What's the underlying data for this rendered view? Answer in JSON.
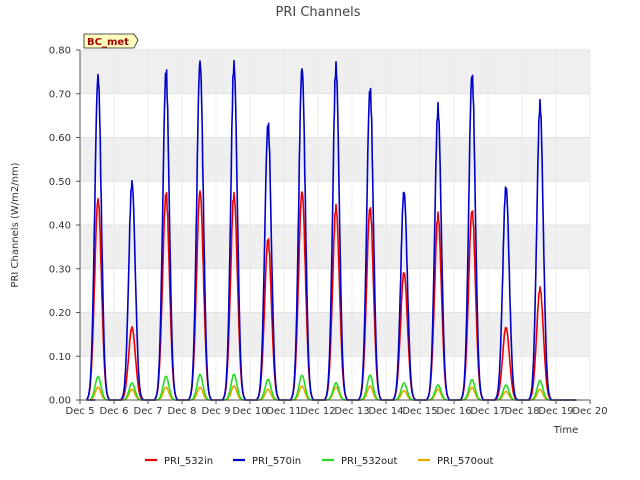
{
  "chart_data": {
    "type": "line",
    "title": "PRI Channels",
    "xlabel": "Time",
    "ylabel": "PRI Channels (W/m2/nm)",
    "badge": "BC_met",
    "xlim": [
      5,
      20
    ],
    "ylim": [
      0,
      0.8
    ],
    "x_tick_values": [
      5,
      6,
      7,
      8,
      9,
      10,
      11,
      12,
      13,
      14,
      15,
      16,
      17,
      18,
      19,
      20
    ],
    "x_tick_labels": [
      "Dec 5",
      "Dec 6",
      "Dec 7",
      "Dec 8",
      "Dec 9",
      "Dec 10",
      "Dec 11",
      "Dec 12",
      "Dec 13",
      "Dec 14",
      "Dec 15",
      "Dec 16",
      "Dec 17",
      "Dec 18",
      "Dec 19",
      "Dec 20"
    ],
    "y_tick_values": [
      0,
      0.1,
      0.2,
      0.3,
      0.4,
      0.5,
      0.6,
      0.7,
      0.8
    ],
    "y_tick_labels": [
      "0.00",
      "0.10",
      "0.20",
      "0.30",
      "0.40",
      "0.50",
      "0.60",
      "0.70",
      "0.80"
    ],
    "grid": true,
    "legend_position": "bottom-center",
    "daily_peaks": {
      "days": [
        6,
        7,
        8,
        9,
        10,
        11,
        12,
        13,
        14,
        15,
        16,
        17,
        18,
        19
      ],
      "PRI_532in": [
        0.47,
        0.17,
        0.48,
        0.49,
        0.48,
        0.375,
        0.49,
        0.45,
        0.45,
        0.3,
        0.43,
        0.445,
        0.17,
        0.26
      ],
      "PRI_570in": [
        0.76,
        0.51,
        0.765,
        0.795,
        0.785,
        0.645,
        0.78,
        0.778,
        0.73,
        0.49,
        0.68,
        0.765,
        0.5,
        0.69
      ],
      "PRI_532out": [
        0.055,
        0.04,
        0.055,
        0.06,
        0.06,
        0.048,
        0.058,
        0.04,
        0.058,
        0.04,
        0.035,
        0.048,
        0.035,
        0.045
      ],
      "PRI_570out": [
        0.03,
        0.025,
        0.03,
        0.03,
        0.033,
        0.025,
        0.033,
        0.03,
        0.033,
        0.022,
        0.025,
        0.03,
        0.02,
        0.025
      ]
    },
    "series": [
      {
        "name": "PRI_532in",
        "color": "#ee0000"
      },
      {
        "name": "PRI_570in",
        "color": "#0000cc"
      },
      {
        "name": "PRI_532out",
        "color": "#22dd22"
      },
      {
        "name": "PRI_570out",
        "color": "#eea500"
      }
    ]
  }
}
